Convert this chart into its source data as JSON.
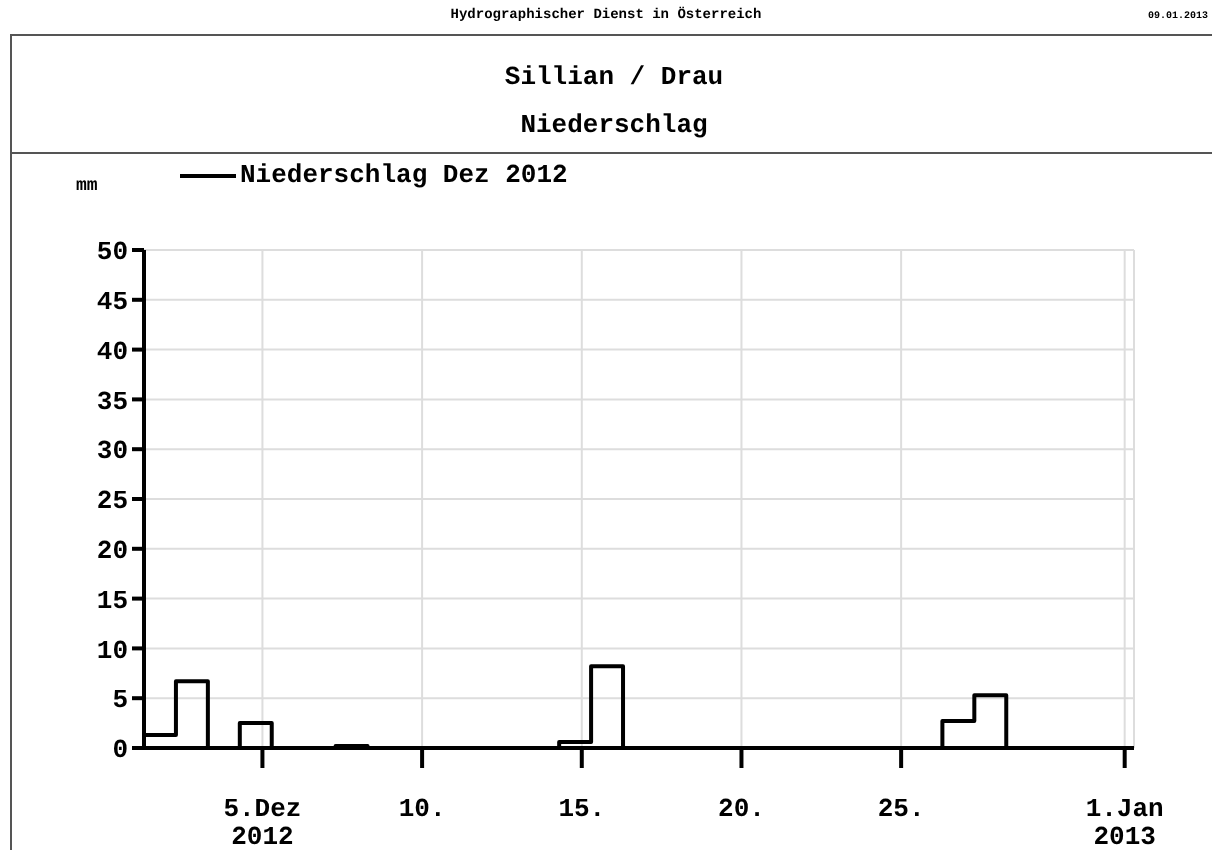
{
  "chart_data": {
    "type": "step",
    "title": "Sillian / Drau",
    "subtitle": "Niederschlag",
    "ylabel": "mm",
    "annotations": [
      "Hydrographischer Dienst in Österreich",
      "09.01.2013"
    ],
    "x": [
      "2012-12-01T07:00",
      "2012-12-02T07:00",
      "2012-12-03T07:00",
      "2012-12-04T07:00",
      "2012-12-05T07:00",
      "2012-12-06T07:00",
      "2012-12-07T07:00",
      "2012-12-08T07:00",
      "2012-12-09T07:00",
      "2012-12-10T07:00",
      "2012-12-11T07:00",
      "2012-12-12T07:00",
      "2012-12-13T07:00",
      "2012-12-14T07:00",
      "2012-12-15T07:00",
      "2012-12-16T07:00",
      "2012-12-17T07:00",
      "2012-12-18T07:00",
      "2012-12-19T07:00",
      "2012-12-20T07:00",
      "2012-12-21T07:00",
      "2012-12-22T07:00",
      "2012-12-23T07:00",
      "2012-12-24T07:00",
      "2012-12-25T07:00",
      "2012-12-26T07:00",
      "2012-12-27T07:00",
      "2012-12-28T07:00",
      "2012-12-29T07:00",
      "2012-12-30T07:00",
      "2012-12-31T07:00",
      "2013-01-01T07:00"
    ],
    "series": [
      {
        "name": "Niederschlag Dez 2012",
        "color": "#000000",
        "values": [
          1.3,
          6.7,
          0,
          2.5,
          0,
          0,
          0.2,
          0,
          0,
          0,
          0,
          0,
          0,
          0.6,
          8.2,
          0,
          0,
          0,
          0,
          0,
          0,
          0,
          0,
          0,
          0,
          2.7,
          5.3,
          0,
          0,
          0,
          0,
          0
        ]
      }
    ],
    "xlim": [
      "2012-12-01T07:00",
      "2013-01-01T07:00"
    ],
    "xticks": [
      {
        "value": "2012-12-05",
        "label": "5.Dez\n2012"
      },
      {
        "value": "2012-12-10",
        "label": "10."
      },
      {
        "value": "2012-12-15",
        "label": "15."
      },
      {
        "value": "2012-12-20",
        "label": "20."
      },
      {
        "value": "2012-12-25",
        "label": "25."
      },
      {
        "value": "2013-01-01",
        "label": "1.Jan\n2013"
      }
    ],
    "ylim": [
      0,
      50
    ],
    "yticks": [
      0,
      5,
      10,
      15,
      20,
      25,
      30,
      35,
      40,
      45,
      50
    ],
    "grid": true,
    "legend": "top left",
    "marker": "none",
    "line_style": "solid"
  }
}
